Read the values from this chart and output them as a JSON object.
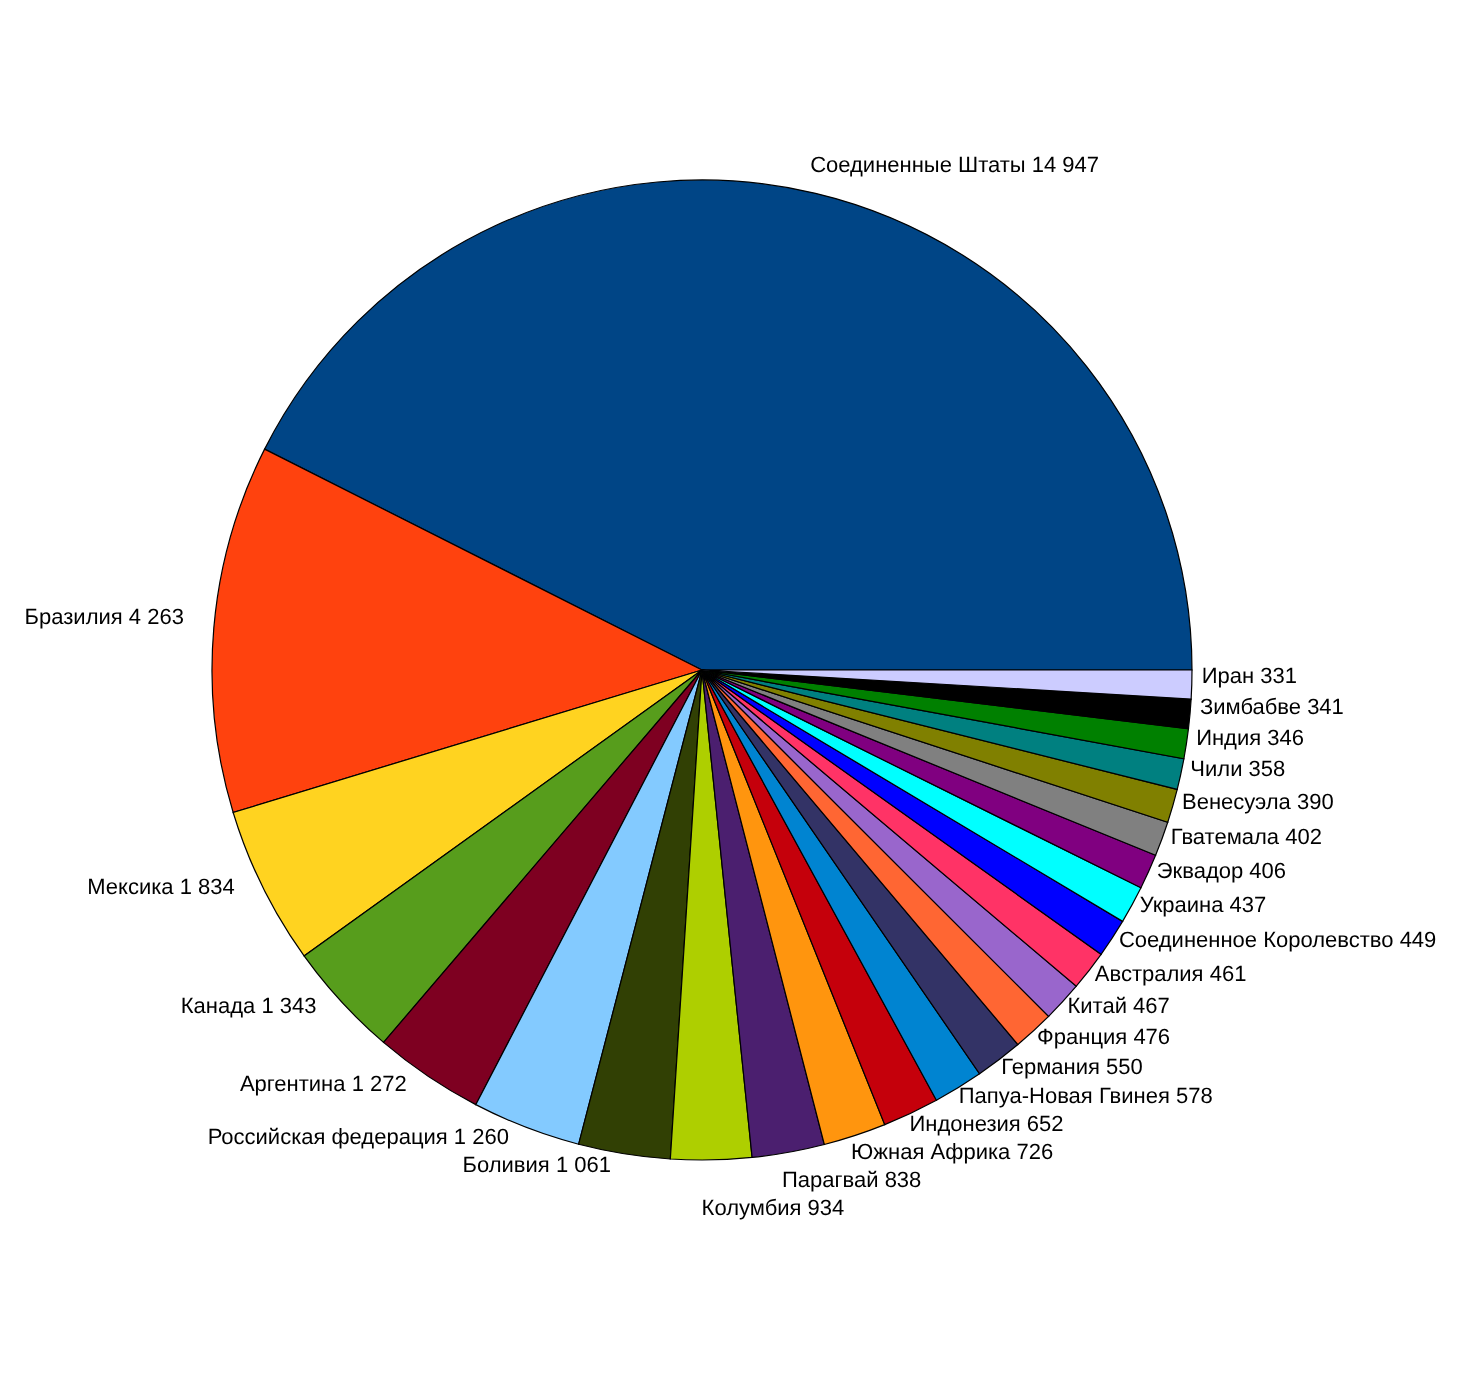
{
  "chart_data": {
    "type": "pie",
    "categories": [
      "Соединенные Штаты",
      "Бразилия",
      "Мексика",
      "Канада",
      "Аргентина",
      "Российская федерация",
      "Боливия",
      "Колумбия",
      "Парагвай",
      "Южная Африка",
      "Индонезия",
      "Папуа-Новая Гвинея",
      "Германия",
      "Франция",
      "Китай",
      "Австралия",
      "Соединенное Королевство",
      "Украина",
      "Эквадор",
      "Гватемала",
      "Венесуэла",
      "Чили",
      "Индия",
      "Зимбабве",
      "Иран"
    ],
    "values": [
      14947,
      4263,
      1834,
      1343,
      1272,
      1260,
      1061,
      934,
      838,
      726,
      652,
      578,
      550,
      476,
      467,
      461,
      449,
      437,
      406,
      402,
      390,
      358,
      346,
      341,
      331
    ],
    "value_labels": [
      "14 947",
      "4 263",
      "1 834",
      "1 343",
      "1 272",
      "1 260",
      "1 061",
      "934",
      "838",
      "726",
      "652",
      "578",
      "550",
      "476",
      "467",
      "461",
      "449",
      "437",
      "406",
      "402",
      "390",
      "358",
      "346",
      "341",
      "331"
    ],
    "colors": [
      "#004586",
      "#ff420e",
      "#ffd320",
      "#579d1c",
      "#7e0021",
      "#83caff",
      "#314004",
      "#aecf00",
      "#4b1f6f",
      "#ff950e",
      "#c5000b",
      "#0084d1",
      "#333366",
      "#ff6633",
      "#9966cc",
      "#ff3366",
      "#0000ff",
      "#00ffff",
      "#800080",
      "#808080",
      "#808000",
      "#008080",
      "#008000",
      "#000000",
      "#ccccff"
    ]
  }
}
